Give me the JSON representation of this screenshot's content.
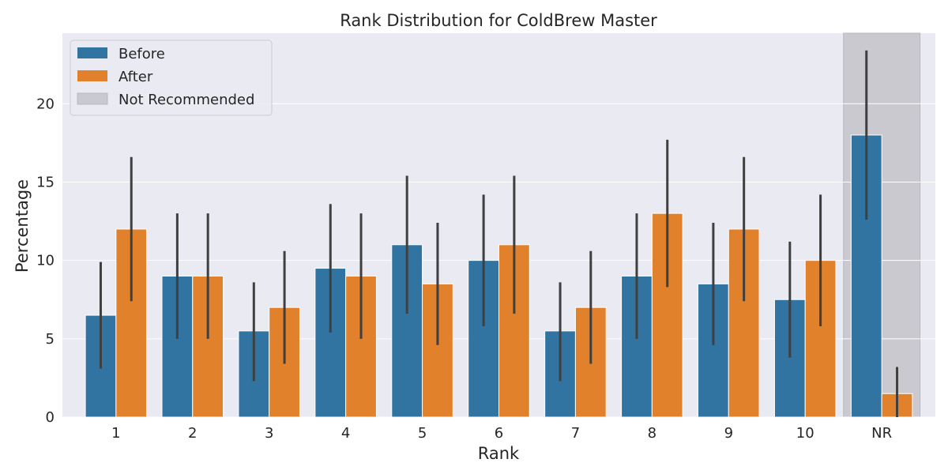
{
  "chart_data": {
    "type": "bar",
    "title": "Rank Distribution for ColdBrew Master",
    "xlabel": "Rank",
    "ylabel": "Percentage",
    "categories": [
      "1",
      "2",
      "3",
      "4",
      "5",
      "6",
      "7",
      "8",
      "9",
      "10",
      "NR"
    ],
    "ylim": [
      0,
      24.5
    ],
    "yticks": [
      0,
      5,
      10,
      15,
      20
    ],
    "grid": true,
    "legend_position": "top-left",
    "series": [
      {
        "name": "Before",
        "color": "#3274a1",
        "values": [
          6.5,
          9,
          5.5,
          9.5,
          11,
          10,
          5.5,
          9,
          8.5,
          7.5,
          18
        ],
        "error_low": [
          3.1,
          5.0,
          2.3,
          5.4,
          6.6,
          5.8,
          2.3,
          5.0,
          4.6,
          3.8,
          12.6
        ],
        "error_high": [
          9.9,
          13.0,
          8.6,
          13.6,
          15.4,
          14.2,
          8.6,
          13.0,
          12.4,
          11.2,
          23.4
        ]
      },
      {
        "name": "After",
        "color": "#e1812c",
        "values": [
          12,
          9,
          7,
          9,
          8.5,
          11,
          7,
          13,
          12,
          10,
          1.5
        ],
        "error_low": [
          7.4,
          5.0,
          3.4,
          5.0,
          4.6,
          6.6,
          3.4,
          8.3,
          7.4,
          5.8,
          0.0
        ],
        "error_high": [
          16.6,
          13.0,
          10.6,
          13.0,
          12.4,
          15.4,
          10.6,
          17.7,
          16.6,
          14.2,
          3.2
        ]
      }
    ],
    "highlight": {
      "name": "Not Recommended",
      "category": "NR",
      "color": "#c9c9cf"
    },
    "error_bar_color": "#3f3f3f",
    "background_color": "#eaeaf2"
  }
}
